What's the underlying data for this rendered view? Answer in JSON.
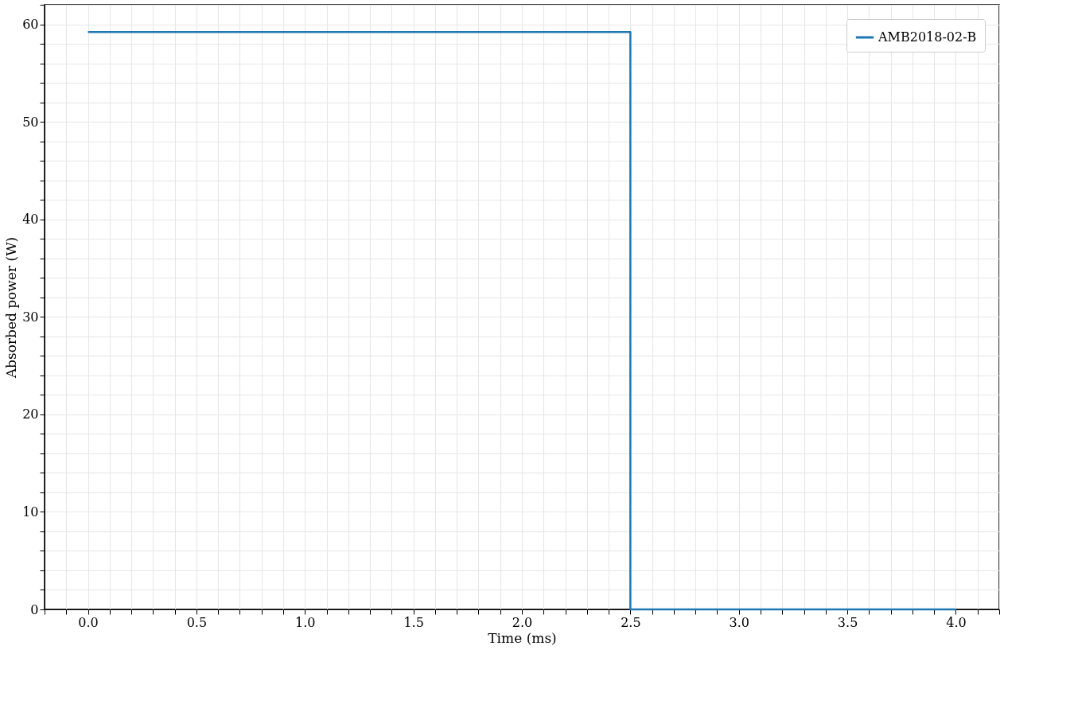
{
  "chart_data": {
    "type": "step",
    "xlabel": "Time (ms)",
    "ylabel": "Absorbed power (W)",
    "x": [
      0,
      2.5,
      4
    ],
    "series": [
      {
        "name": "AMB2018-02-B",
        "color": "#1f77b4",
        "values": [
          59.2,
          0,
          0
        ]
      }
    ],
    "xlim": [
      -0.2,
      4.2
    ],
    "xticks": [
      {
        "value": -0.2,
        "label": null
      },
      {
        "value": -0.1,
        "label": null
      },
      {
        "value": 0,
        "label": "0.0"
      },
      {
        "value": 0.1,
        "label": null
      },
      {
        "value": 0.2,
        "label": null
      },
      {
        "value": 0.3,
        "label": null
      },
      {
        "value": 0.4,
        "label": null
      },
      {
        "value": 0.5,
        "label": "0.5"
      },
      {
        "value": 0.6,
        "label": null
      },
      {
        "value": 0.7,
        "label": null
      },
      {
        "value": 0.8,
        "label": null
      },
      {
        "value": 0.9,
        "label": null
      },
      {
        "value": 1,
        "label": "1.0"
      },
      {
        "value": 1.1,
        "label": null
      },
      {
        "value": 1.2,
        "label": null
      },
      {
        "value": 1.3,
        "label": null
      },
      {
        "value": 1.4,
        "label": null
      },
      {
        "value": 1.5,
        "label": "1.5"
      },
      {
        "value": 1.6,
        "label": null
      },
      {
        "value": 1.7,
        "label": null
      },
      {
        "value": 1.8,
        "label": null
      },
      {
        "value": 1.9,
        "label": null
      },
      {
        "value": 2,
        "label": "2.0"
      },
      {
        "value": 2.1,
        "label": null
      },
      {
        "value": 2.2,
        "label": null
      },
      {
        "value": 2.3,
        "label": null
      },
      {
        "value": 2.4,
        "label": null
      },
      {
        "value": 2.5,
        "label": "2.5"
      },
      {
        "value": 2.6,
        "label": null
      },
      {
        "value": 2.7,
        "label": null
      },
      {
        "value": 2.8,
        "label": null
      },
      {
        "value": 2.9,
        "label": null
      },
      {
        "value": 3,
        "label": "3.0"
      },
      {
        "value": 3.1,
        "label": null
      },
      {
        "value": 3.2,
        "label": null
      },
      {
        "value": 3.3,
        "label": null
      },
      {
        "value": 3.4,
        "label": null
      },
      {
        "value": 3.5,
        "label": "3.5"
      },
      {
        "value": 3.6,
        "label": null
      },
      {
        "value": 3.7,
        "label": null
      },
      {
        "value": 3.8,
        "label": null
      },
      {
        "value": 3.9,
        "label": null
      },
      {
        "value": 4,
        "label": "4.0"
      },
      {
        "value": 4.1,
        "label": null
      },
      {
        "value": 4.2,
        "label": null
      }
    ],
    "ylim": [
      0,
      62
    ],
    "yticks": [
      0,
      {
        "value": 2,
        "label": null
      },
      {
        "value": 4,
        "label": null
      },
      {
        "value": 6,
        "label": null
      },
      {
        "value": 8,
        "label": null
      },
      10,
      {
        "value": 12,
        "label": null
      },
      {
        "value": 14,
        "label": null
      },
      {
        "value": 16,
        "label": null
      },
      {
        "value": 18,
        "label": null
      },
      20,
      {
        "value": 22,
        "label": null
      },
      {
        "value": 24,
        "label": null
      },
      {
        "value": 26,
        "label": null
      },
      {
        "value": 28,
        "label": null
      },
      30,
      {
        "value": 32,
        "label": null
      },
      {
        "value": 34,
        "label": null
      },
      {
        "value": 36,
        "label": null
      },
      {
        "value": 38,
        "label": null
      },
      40,
      {
        "value": 42,
        "label": null
      },
      {
        "value": 44,
        "label": null
      },
      {
        "value": 46,
        "label": null
      },
      {
        "value": 48,
        "label": null
      },
      50,
      {
        "value": 52,
        "label": null
      },
      {
        "value": 54,
        "label": null
      },
      {
        "value": 56,
        "label": null
      },
      {
        "value": 58,
        "label": null
      },
      60,
      {
        "value": 62,
        "label": null
      }
    ],
    "grid": true,
    "legend": "top right",
    "line_style": "solid",
    "marker": "none"
  }
}
